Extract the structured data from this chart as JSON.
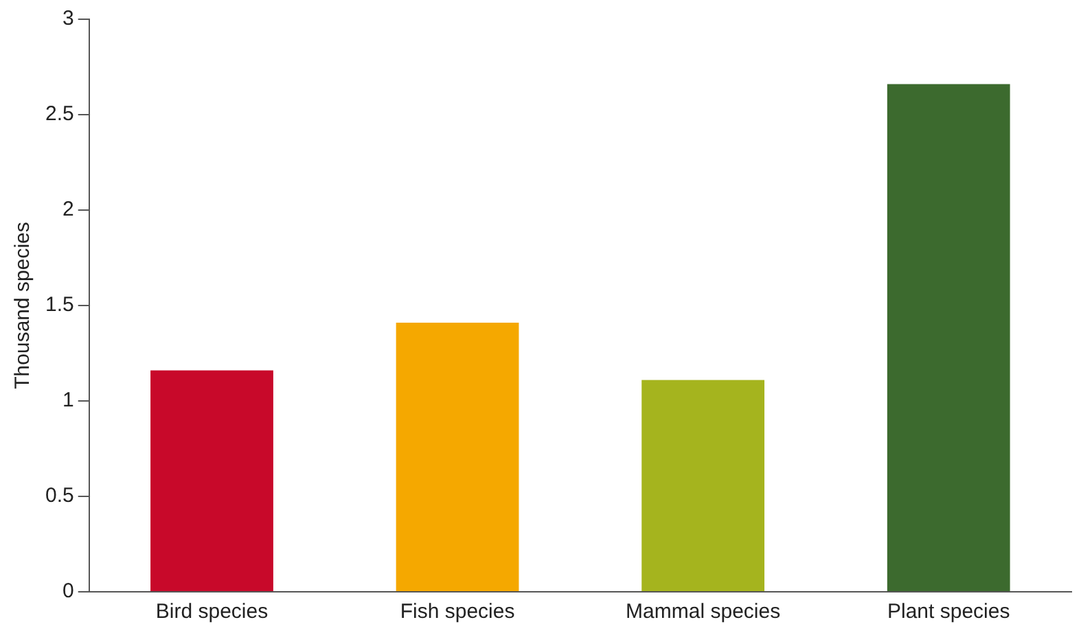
{
  "chart_data": {
    "type": "bar",
    "ylabel": "Thousand species",
    "categories": [
      "Bird species",
      "Fish species",
      "Mammal species",
      "Plant species"
    ],
    "values": [
      1.16,
      1.41,
      1.11,
      2.66
    ],
    "colors": [
      "#c8092a",
      "#f5a800",
      "#a5b41e",
      "#3c6a2e"
    ],
    "ylim": [
      0,
      3
    ],
    "yticks": [
      0,
      0.5,
      1,
      1.5,
      2,
      2.5,
      3
    ],
    "grid": false,
    "legend": false
  }
}
